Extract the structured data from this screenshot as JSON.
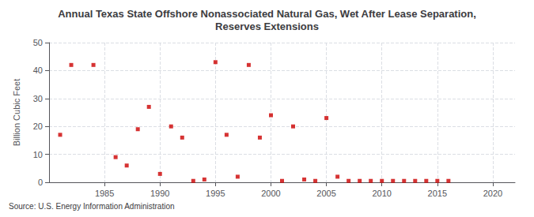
{
  "chart_data": {
    "type": "scatter",
    "title": "Annual Texas State Offshore Nonassociated Natural Gas, Wet After Lease Separation,\nReserves Extensions",
    "ylabel": "Billion Cubic Feet",
    "annotations": [
      "Source: U.S. Energy Information Administration"
    ],
    "x": [
      1981,
      1982,
      1984,
      1986,
      1987,
      1988,
      1989,
      1990,
      1991,
      1992,
      1993,
      1994,
      1995,
      1996,
      1997,
      1998,
      1999,
      2000,
      2001,
      2002,
      2003,
      2004,
      2005,
      2006,
      2007,
      2008,
      2009,
      2010,
      2011,
      2012,
      2013,
      2014,
      2015,
      2016
    ],
    "values": [
      17,
      42,
      42,
      9,
      6,
      19,
      27,
      3,
      20,
      16,
      0.5,
      1,
      43,
      17,
      2,
      42,
      16,
      24,
      0.5,
      20,
      1,
      0.5,
      23,
      2,
      0.5,
      0.5,
      0.5,
      0.5,
      0.5,
      0.5,
      0.5,
      0.5,
      0.5,
      0.5
    ],
    "color": "#cc0000",
    "marker": "square",
    "xlim": [
      1980,
      2022
    ],
    "ylim": [
      0,
      50
    ],
    "xticks": [
      1985,
      1990,
      1995,
      2000,
      2005,
      2010,
      2015,
      2020
    ],
    "yticks": [
      0,
      10,
      20,
      30,
      40,
      50
    ],
    "grid": true
  }
}
